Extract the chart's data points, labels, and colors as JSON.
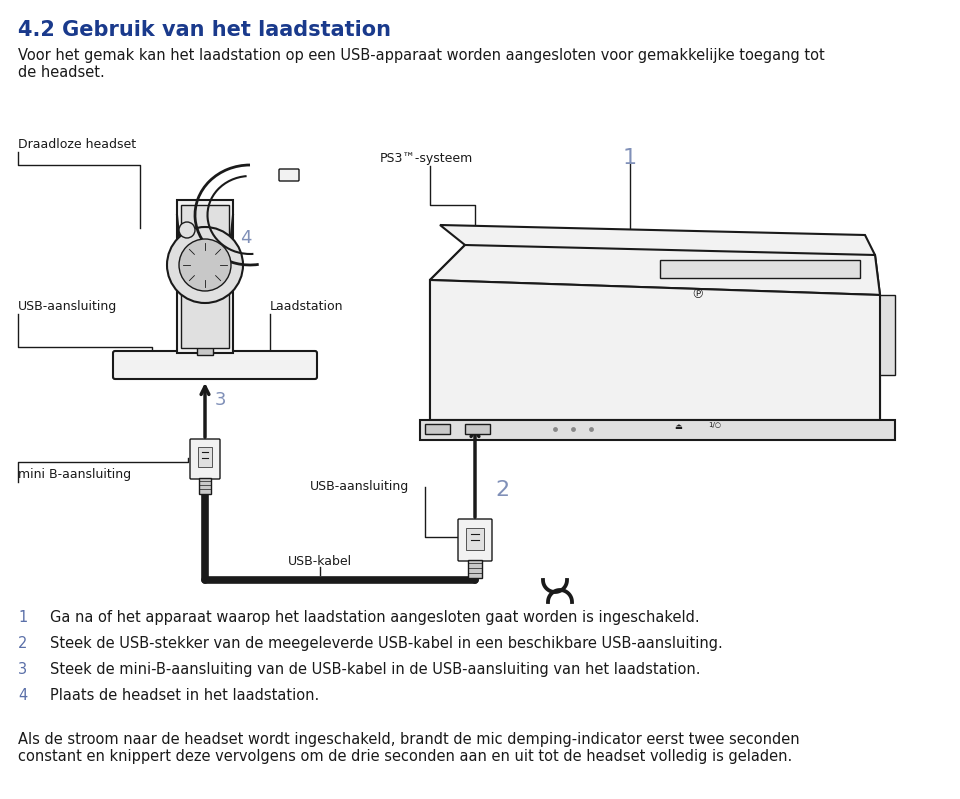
{
  "title": "4.2 Gebruik van het laadstation",
  "title_color": "#1a3a8c",
  "title_fontsize": 15,
  "intro_line1": "Voor het gemak kan het laadstation op een USB-apparaat worden aangesloten voor gemakkelijke toegang tot",
  "intro_line2": "de headset.",
  "body_color": "#1a1a1a",
  "body_fontsize": 10.5,
  "label_fontsize": 9.0,
  "step_num_color": "#5a6fa8",
  "bg_color": "#ffffff",
  "line_color": "#1a1a1a",
  "fill_light": "#f2f2f2",
  "fill_mid": "#e0e0e0",
  "fill_dark": "#c8c8c8",
  "cable_color": "#1a1a1a",
  "num_color": "#8090b8",
  "steps": [
    {
      "num": "1",
      "text": "Ga na of het apparaat waarop het laadstation aangesloten gaat worden is ingeschakeld."
    },
    {
      "num": "2",
      "text": "Steek de USB-stekker van de meegeleverde USB-kabel in een beschikbare USB-aansluiting."
    },
    {
      "num": "3",
      "text": "Steek de mini-B-aansluiting van de USB-kabel in de USB-aansluiting van het laadstation."
    },
    {
      "num": "4",
      "text": "Plaats de headset in het laadstation."
    }
  ],
  "footer_text": "Als de stroom naar de headset wordt ingeschakeld, brandt de mic demping-indicator eerst twee seconden\nconstant en knippert deze vervolgens om de drie seconden aan en uit tot de headset volledig is geladen."
}
